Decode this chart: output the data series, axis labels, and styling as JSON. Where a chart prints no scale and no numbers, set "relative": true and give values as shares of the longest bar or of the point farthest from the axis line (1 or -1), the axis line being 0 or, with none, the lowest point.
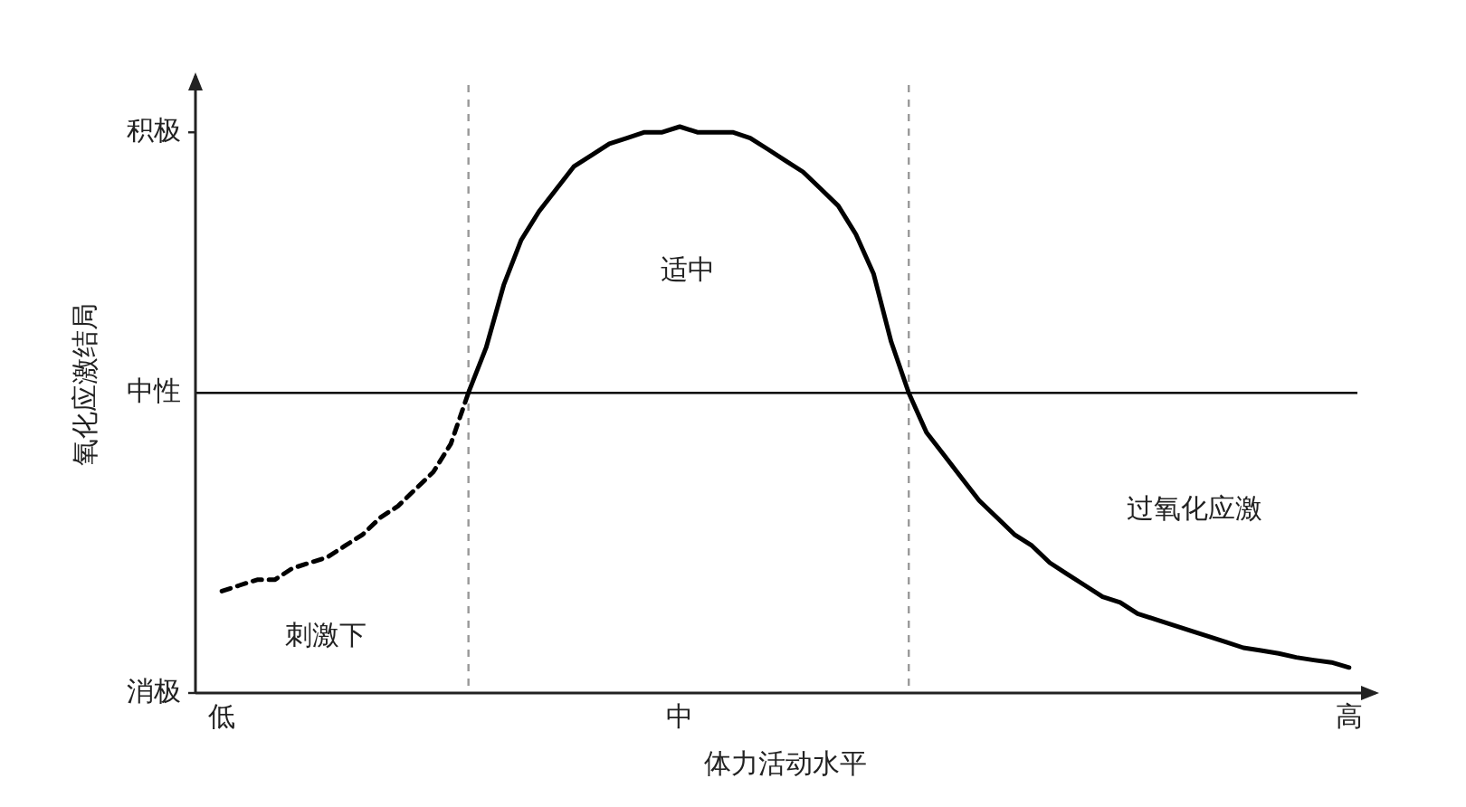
{
  "chart_data": {
    "type": "line",
    "relative": true,
    "xlabel": "体力活动水平",
    "ylabel": "氧化应激结局",
    "categories": [
      null,
      "低",
      null,
      null,
      null,
      null,
      null,
      null,
      null,
      null,
      null,
      null,
      null,
      null,
      null,
      null,
      null,
      null,
      null,
      null,
      null,
      null,
      null,
      null,
      null,
      null,
      null,
      "中",
      null,
      null,
      null,
      null,
      null,
      null,
      null,
      null,
      null,
      null,
      null,
      null,
      null,
      null,
      null,
      null,
      null,
      null,
      null,
      null,
      null,
      null,
      null,
      null,
      null,
      null,
      null,
      null,
      null,
      null,
      null,
      null,
      null,
      null,
      null,
      null,
      null,
      "高",
      null
    ],
    "series": [
      {
        "color": "#000000",
        "line_style": "dashed",
        "values": [
          null,
          0.18,
          0.19,
          0.2,
          0.2,
          0.22,
          0.23,
          0.24,
          0.26,
          0.28,
          0.31,
          0.33,
          0.36,
          0.39,
          0.44,
          0.53,
          null,
          null,
          null,
          null,
          null,
          null,
          null,
          null,
          null,
          null,
          null,
          null,
          null,
          null,
          null,
          null,
          null,
          null,
          null,
          null,
          null,
          null,
          null,
          null,
          null,
          null,
          null,
          null,
          null,
          null,
          null,
          null,
          null,
          null,
          null,
          null,
          null,
          null,
          null,
          null,
          null,
          null,
          null,
          null,
          null,
          null,
          null,
          null,
          null,
          null,
          null
        ]
      },
      {
        "color": "#000000",
        "line_style": "solid",
        "values": [
          null,
          null,
          null,
          null,
          null,
          null,
          null,
          null,
          null,
          null,
          null,
          null,
          null,
          null,
          null,
          0.53,
          0.61,
          0.72,
          0.8,
          0.85,
          0.89,
          0.93,
          0.95,
          0.97,
          0.98,
          0.99,
          0.99,
          1,
          0.99,
          0.99,
          0.99,
          0.98,
          0.96,
          0.94,
          0.92,
          0.89,
          0.86,
          0.81,
          0.74,
          0.62,
          0.53,
          0.46,
          0.42,
          0.38,
          0.34,
          0.31,
          0.28,
          0.26,
          0.23,
          0.21,
          0.19,
          0.17,
          0.16,
          0.14,
          0.13,
          0.12,
          0.11,
          0.1,
          0.09,
          0.08,
          0.075,
          0.07,
          0.063,
          0.058,
          0.054,
          0.045,
          null
        ]
      }
    ],
    "ref_lines": [
      {
        "axis": "y",
        "value": 0,
        "label": "消极"
      },
      {
        "axis": "y",
        "value": 0.53,
        "label": "中性",
        "color": "#000000",
        "line_style": "solid"
      },
      {
        "axis": "y",
        "value": 0.99,
        "label": "积极"
      }
    ],
    "annotations": [
      "刺激下",
      "适中",
      "过氧化应激"
    ]
  }
}
